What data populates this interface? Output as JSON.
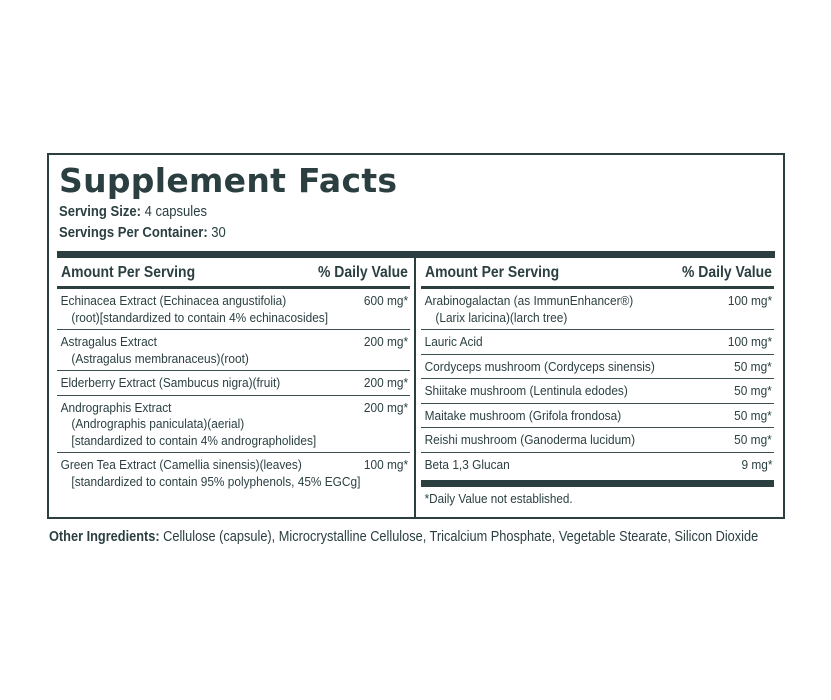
{
  "label": {
    "title": "Supplement Facts",
    "serving_size_label": "Serving Size:",
    "serving_size_value": " 4 capsules",
    "servings_per_container_label": "Servings Per Container:",
    "servings_per_container_value": " 30",
    "colors": {
      "ink": "#2b3f41",
      "background": "#ffffff"
    }
  },
  "left_column": {
    "header": {
      "amount": "Amount Per Serving",
      "daily_value": "% Daily Value"
    },
    "rows": [
      {
        "name": "Echinacea Extract (Echinacea angustifolia)",
        "sub": [
          "(root)[standardized to contain 4% echinacosides]"
        ],
        "amount": "600 mg*"
      },
      {
        "name": "Astragalus Extract",
        "sub": [
          "(Astragalus membranaceus)(root)"
        ],
        "amount": "200 mg*"
      },
      {
        "name": "Elderberry Extract (Sambucus nigra)(fruit)",
        "sub": [],
        "amount": "200 mg*"
      },
      {
        "name": "Andrographis Extract",
        "sub": [
          "(Andrographis paniculata)(aerial)",
          "[standardized to contain 4% andrographolides]"
        ],
        "amount": "200 mg*"
      },
      {
        "name": "Green Tea Extract (Camellia sinensis)(leaves)",
        "sub": [
          "[standardized to contain 95% polyphenols, 45% EGCg]"
        ],
        "amount": "100 mg*"
      }
    ]
  },
  "right_column": {
    "header": {
      "amount": "Amount Per Serving",
      "daily_value": "% Daily Value"
    },
    "rows": [
      {
        "name": "Arabinogalactan (as ImmunEnhancer®)",
        "sub": [
          "(Larix laricina)(larch tree)"
        ],
        "amount": "100 mg*"
      },
      {
        "name": "Lauric Acid",
        "sub": [],
        "amount": "100 mg*"
      },
      {
        "name": "Cordyceps mushroom (Cordyceps sinensis)",
        "sub": [],
        "amount": "50 mg*"
      },
      {
        "name": "Shiitake mushroom (Lentinula edodes)",
        "sub": [],
        "amount": "50 mg*"
      },
      {
        "name": "Maitake mushroom (Grifola frondosa)",
        "sub": [],
        "amount": "50 mg*"
      },
      {
        "name": "Reishi mushroom (Ganoderma lucidum)",
        "sub": [],
        "amount": "50 mg*"
      },
      {
        "name": "Beta 1,3 Glucan",
        "sub": [],
        "amount": "9 mg*"
      }
    ],
    "footnote": "*Daily Value not established."
  },
  "other_ingredients": {
    "label": "Other Ingredients:",
    "value": " Cellulose (capsule), Microcrystalline Cellulose, Tricalcium Phosphate, Vegetable Stearate, Silicon Dioxide"
  }
}
